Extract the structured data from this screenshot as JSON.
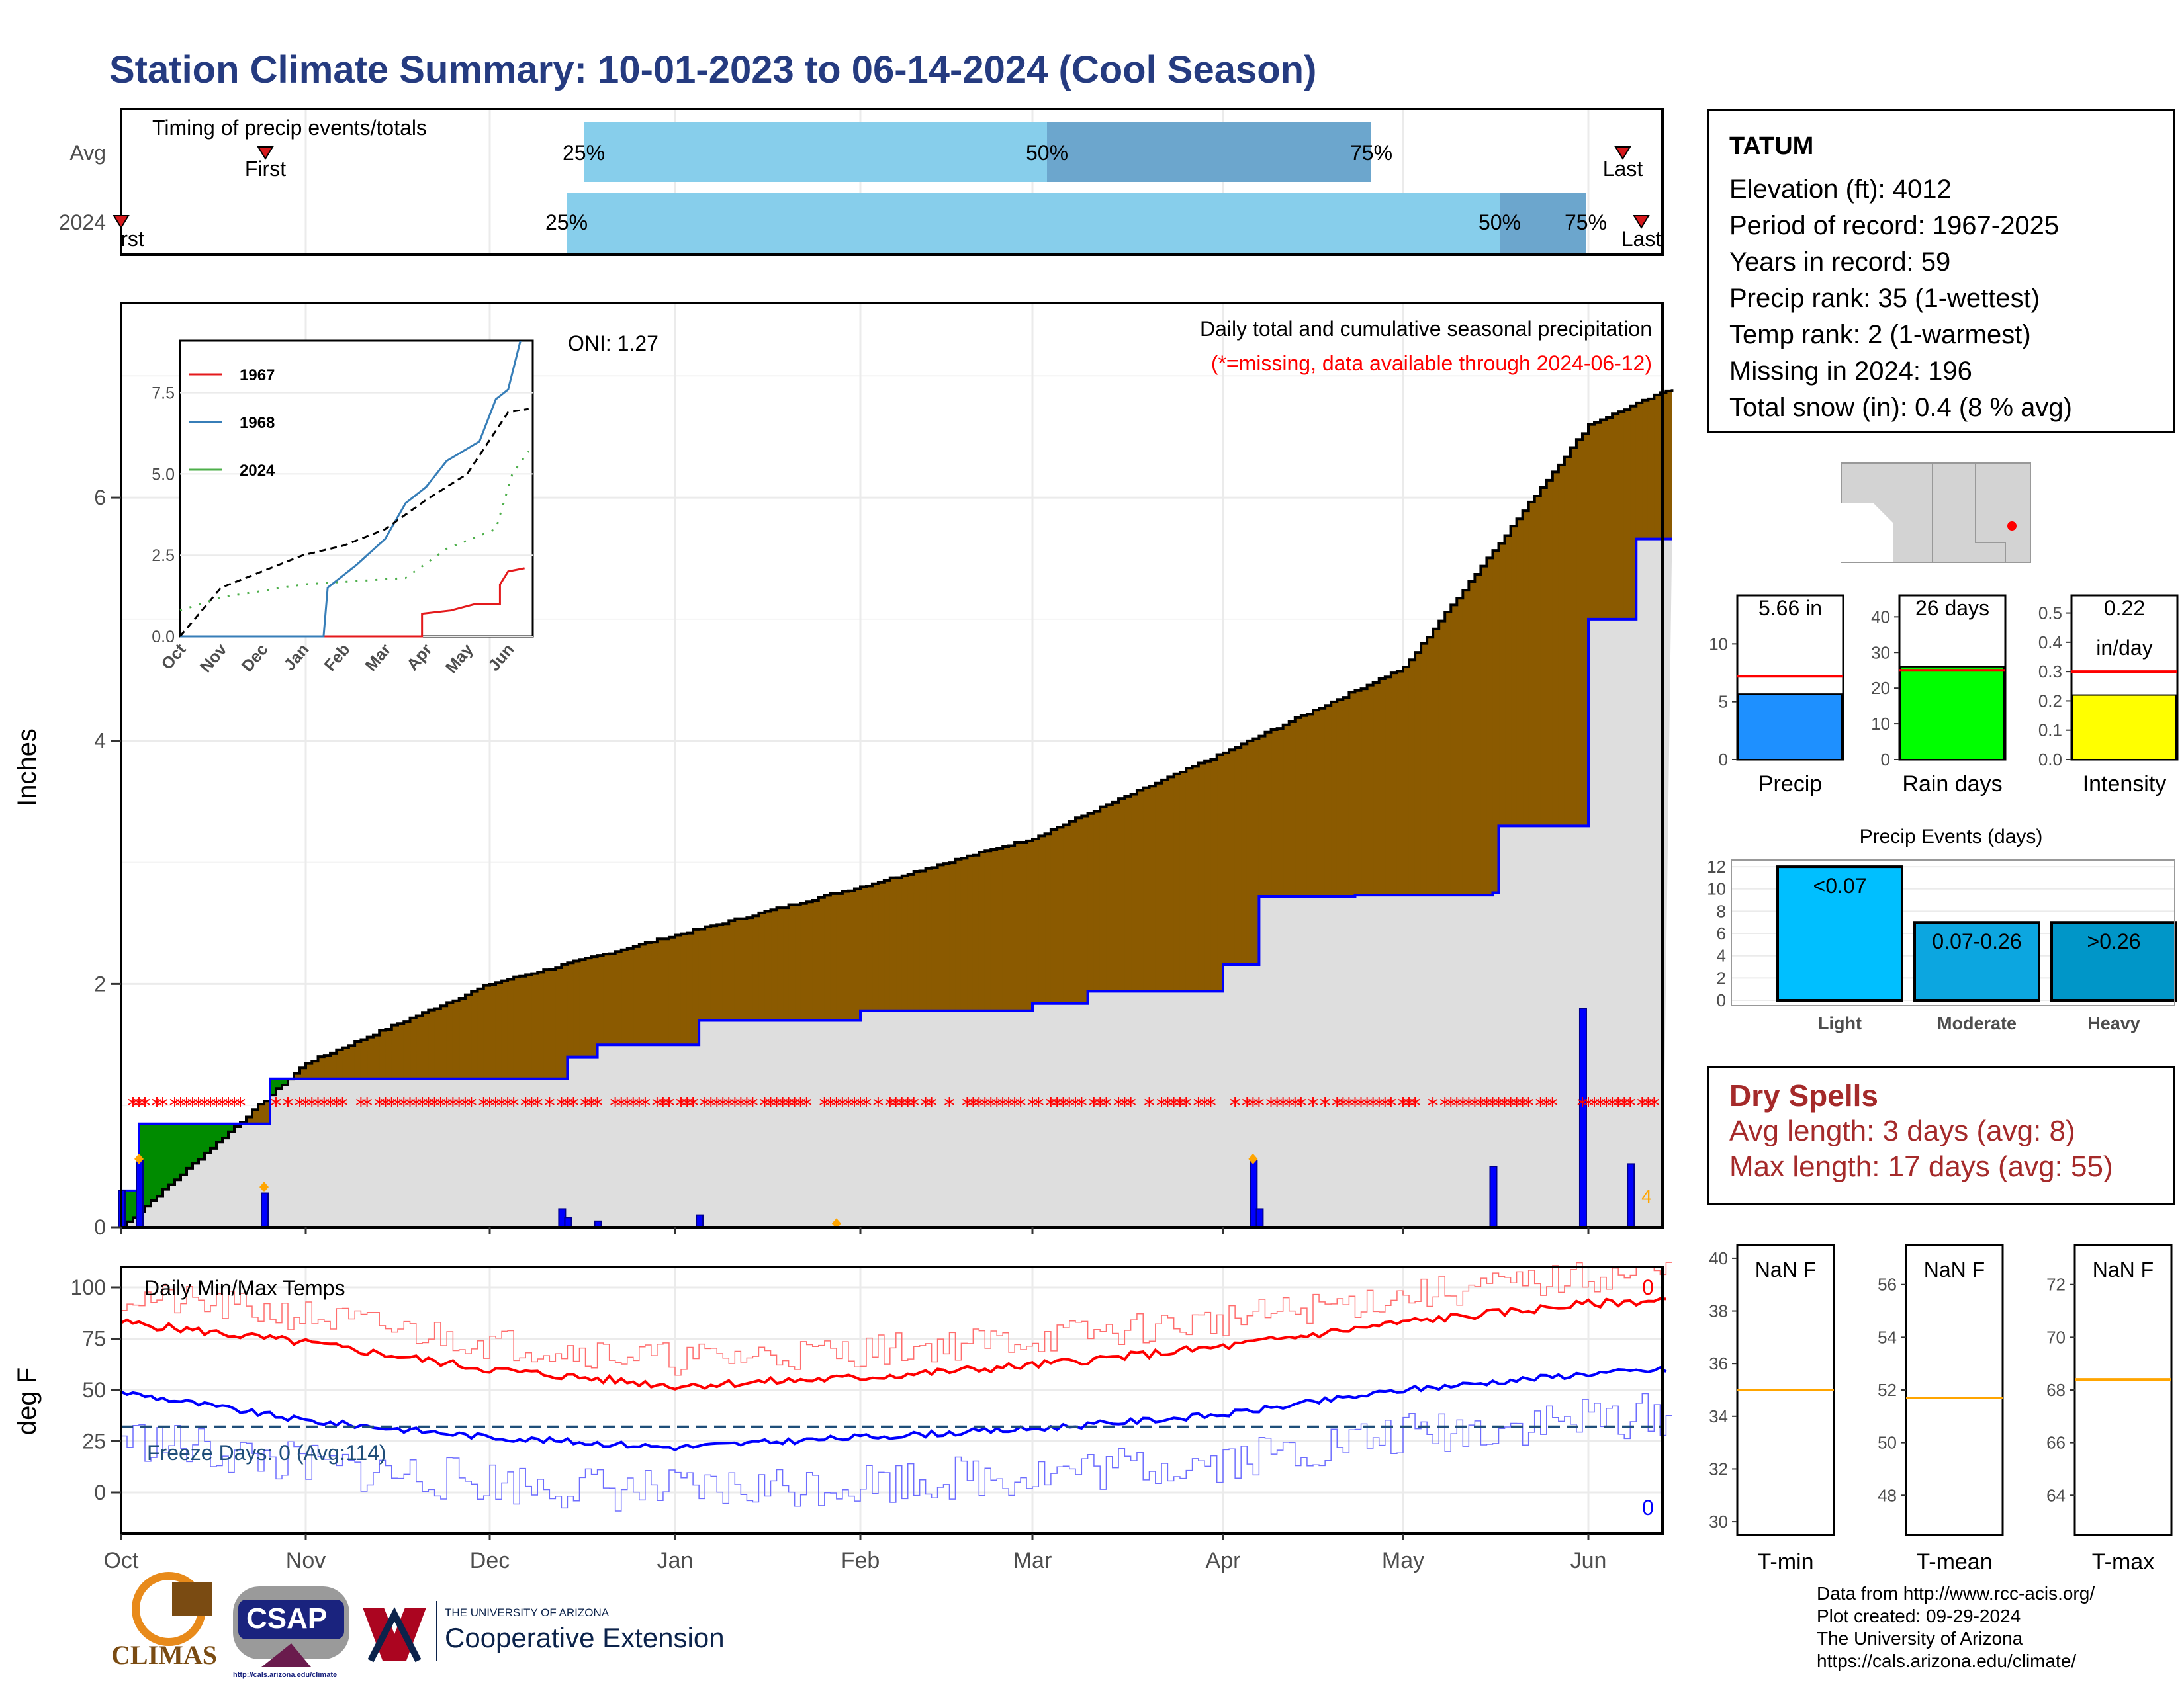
{
  "title": "Station Climate Summary: 10-01-2023 to 06-14-2024 (Cool Season)",
  "timing": {
    "label": "Timing of precip events/totals",
    "rows": [
      "Avg",
      "2024"
    ],
    "avg": {
      "first": "First",
      "last": "Last",
      "p25": "25%",
      "p50": "50%",
      "p75": "75%"
    },
    "y2024": {
      "first": "rst",
      "last": "Last",
      "p25": "25%",
      "p50": "50%",
      "p75": "75%"
    }
  },
  "station": {
    "name": "TATUM",
    "elevation": "Elevation (ft): 4012",
    "period": "Period of record: 1967-2025",
    "years": "Years in record: 59",
    "precip_rank": "Precip rank: 35 (1-wettest)",
    "temp_rank": "Temp rank: 2 (1-warmest)",
    "missing": "Missing in 2024: 196",
    "snow": "Total snow (in): 0.4 (8 % avg)"
  },
  "main": {
    "ylabel": "Inches",
    "oni": "ONI: 1.27",
    "caption": "Daily total and cumulative seasonal precipitation",
    "missing_note": "(*=missing, data available through 2024-06-12)",
    "yticks": [
      "0",
      "2",
      "4",
      "6"
    ],
    "months": [
      "Oct",
      "Nov",
      "Dec",
      "Jan",
      "Feb",
      "Mar",
      "Apr",
      "May",
      "Jun"
    ],
    "end_label": "4"
  },
  "inset": {
    "yticks": [
      "0.0",
      "2.5",
      "5.0",
      "7.5"
    ],
    "xticks": [
      "Oct",
      "Nov",
      "Dec",
      "Jan",
      "Feb",
      "Mar",
      "Apr",
      "May",
      "Jun"
    ],
    "legend": [
      {
        "name": "1967",
        "color": "#e41a1c"
      },
      {
        "name": "1968",
        "color": "#377eb8"
      },
      {
        "name": "2024",
        "color": "#4daf4a"
      }
    ]
  },
  "temps": {
    "ylabel": "deg F",
    "label": "Daily Min/Max Temps",
    "freeze": "Freeze Days: 0 (Avg:114)",
    "max_count": "0",
    "min_count": "0",
    "yticks": [
      "0",
      "25",
      "50",
      "75",
      "100"
    ],
    "months": [
      "Oct",
      "Nov",
      "Dec",
      "Jan",
      "Feb",
      "Mar",
      "Apr",
      "May",
      "Jun"
    ]
  },
  "summary_bars": {
    "precip": {
      "label": "Precip",
      "value_text": "5.66 in",
      "value": 5.66,
      "avg": 7.2,
      "yticks": [
        "0",
        "5",
        "10"
      ],
      "color": "#1e90ff"
    },
    "raindays": {
      "label": "Rain days",
      "value_text": "26 days",
      "value": 26,
      "avg": 25,
      "yticks": [
        "0",
        "10",
        "20",
        "30",
        "40"
      ],
      "color": "#00ff00"
    },
    "intensity": {
      "label": "Intensity",
      "value_text": "0.22",
      "value_text2": "in/day",
      "value": 0.22,
      "avg": 0.3,
      "yticks": [
        "0.0",
        "0.1",
        "0.2",
        "0.3",
        "0.4",
        "0.5"
      ],
      "color": "#ffff00"
    }
  },
  "events": {
    "title": "Precip Events (days)",
    "yticks": [
      "0",
      "2",
      "4",
      "6",
      "8",
      "10",
      "12"
    ],
    "bars": [
      {
        "label": "Light",
        "text": "<0.07",
        "value": 12,
        "color": "#00bfff"
      },
      {
        "label": "Moderate",
        "text": "0.07-0.26",
        "value": 7,
        "color": "#0ca6e0"
      },
      {
        "label": "Heavy",
        "text": ">0.26",
        "value": 7,
        "color": "#0096c8"
      }
    ]
  },
  "dry_spells": {
    "title": "Dry Spells",
    "avg": "Avg length: 3 days (avg: 8)",
    "max": "Max length: 17 days (avg: 55)"
  },
  "temp_panels": [
    {
      "label": "T-min",
      "value_text": "NaN F",
      "avg": 35,
      "yticks": [
        "30",
        "32",
        "34",
        "36",
        "38",
        "40"
      ]
    },
    {
      "label": "T-mean",
      "value_text": "NaN F",
      "avg": 51.7,
      "yticks": [
        "48",
        "50",
        "52",
        "54",
        "56"
      ]
    },
    {
      "label": "T-max",
      "value_text": "NaN F",
      "avg": 68.4,
      "yticks": [
        "64",
        "66",
        "68",
        "70",
        "72"
      ]
    }
  ],
  "footer": {
    "line1": "Data from http://www.rcc-acis.org/",
    "line2": "Plot created: 09-29-2024",
    "line3": "The University of Arizona",
    "line4": "https://cals.arizona.edu/climate/"
  },
  "logos": {
    "climas": "CLIMAS",
    "csap": "CSAP",
    "csap_url": "http://cals.arizona.edu/climate",
    "ua_small": "THE UNIVERSITY OF ARIZONA",
    "ua_big": "Cooperative Extension"
  },
  "chart_data": [
    {
      "type": "area",
      "title": "Daily total and cumulative seasonal precipitation",
      "ylabel": "Inches",
      "ylim": [
        0,
        7.6
      ],
      "x": [
        "Oct",
        "Nov",
        "Dec",
        "Jan",
        "Feb",
        "Mar",
        "Apr",
        "May",
        "Jun"
      ],
      "series": [
        {
          "name": "",
          "description_free": true,
          "values": [
            0,
            1.35,
            2.0,
            2.4,
            2.8,
            3.2,
            3.9,
            4.6,
            6.6
          ],
          "end": 6.9
        },
        {
          "values": [
            0,
            1.22,
            1.22,
            1.7,
            1.78,
            1.84,
            2.72,
            2.75,
            5.66
          ],
          "end": 5.66
        }
      ],
      "daily_spikes": [
        {
          "date": "10-01",
          "value": 0.3
        },
        {
          "date": "10-04",
          "value": 0.55
        },
        {
          "date": "10-25",
          "value": 0.28
        },
        {
          "date": "12-13",
          "value": 0.15
        },
        {
          "date": "12-14",
          "value": 0.08
        },
        {
          "date": "12-19",
          "value": 0.05
        },
        {
          "date": "01-05",
          "value": 0.1
        },
        {
          "date": "04-07",
          "value": 0.55
        },
        {
          "date": "04-08",
          "value": 0.15
        },
        {
          "date": "05-17",
          "value": 0.5
        },
        {
          "date": "06-01",
          "value": 1.8
        },
        {
          "date": "06-09",
          "value": 0.52
        }
      ],
      "missing_marker_level": 1.0
    },
    {
      "type": "line",
      "title": "Daily Min/Max Temps",
      "ylabel": "deg F",
      "ylim": [
        -20,
        110
      ],
      "categories": [
        "Oct",
        "Nov",
        "Dec",
        "Jan",
        "Feb",
        "Mar",
        "Apr",
        "May",
        "Jun"
      ],
      "series": [
        {
          "name": "",
          "values": [
            83,
            73,
            60,
            52,
            56,
            62,
            71,
            83,
            92
          ]
        },
        {
          "name": "",
          "values": [
            49,
            35,
            27,
            22,
            27,
            31,
            38,
            50,
            58
          ]
        }
      ],
      "freeze_line": 32
    }
  ]
}
